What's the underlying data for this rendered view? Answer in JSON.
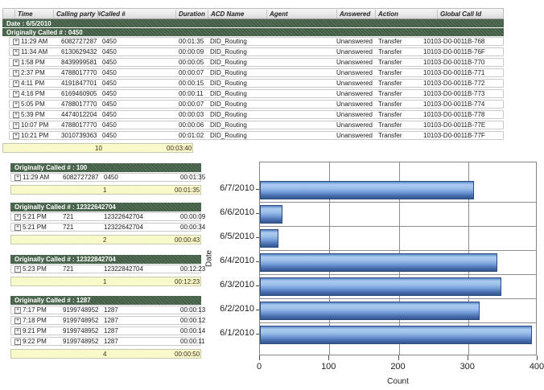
{
  "report": {
    "columns": [
      "",
      "Time",
      "Calling party #",
      "Called #",
      "Duration",
      "ACD Name",
      "Agent",
      "Answered",
      "Action",
      "Global Call Id"
    ],
    "date_label": "Date : 6/5/2010",
    "expand_icon_glyph": "+",
    "groups": [
      {
        "header": "Originally Called # : 0450",
        "full_columns": true,
        "rows": [
          [
            "11:29 AM",
            "6082727287",
            "0450",
            "00:01:35",
            "DID_Routing",
            "",
            "Unanswered",
            "Transfer",
            "10103-D0-0011B-768"
          ],
          [
            "11:34 AM",
            "6130629432",
            "0450",
            "00:00:09",
            "DID_Routing",
            "",
            "Unanswered",
            "Transfer",
            "10103-D0-0011B-76F"
          ],
          [
            "1:58 PM",
            "8439999581",
            "0450",
            "00:00:05",
            "DID_Routing",
            "",
            "Unanswered",
            "Transfer",
            "10103-D0-0011B-770"
          ],
          [
            "2:37 PM",
            "4788017770",
            "0450",
            "00:00:07",
            "DID_Routing",
            "",
            "Unanswered",
            "Transfer",
            "10103-D0-0011B-771"
          ],
          [
            "4:11 PM",
            "4191847701",
            "0450",
            "00:00:15",
            "DID_Routing",
            "",
            "Unanswered",
            "Transfer",
            "10103-D0-0011B-772"
          ],
          [
            "4:16 PM",
            "6169460905",
            "0450",
            "00:00:11",
            "DID_Routing",
            "",
            "Unanswered",
            "Transfer",
            "10103-D0-0011B-773"
          ],
          [
            "5:05 PM",
            "4788017770",
            "0450",
            "00:00:07",
            "DID_Routing",
            "",
            "Unanswered",
            "Transfer",
            "10103-D0-0011B-774"
          ],
          [
            "5:39 PM",
            "4474012204",
            "0450",
            "00:00:03",
            "DID_Routing",
            "",
            "Unanswered",
            "Transfer",
            "10103-D0-0011B-778"
          ],
          [
            "10:07 PM",
            "4788017770",
            "0450",
            "00:00:06",
            "DID_Routing",
            "",
            "Unanswered",
            "Transfer",
            "10103-D0-0011B-77E"
          ],
          [
            "10:21 PM",
            "3010739363",
            "0450",
            "00:01:02",
            "DID_Routing",
            "",
            "Unanswered",
            "Transfer",
            "10103-D0-0011B-77F"
          ]
        ],
        "summary": {
          "count": "10",
          "total_duration": "00:03:40"
        }
      },
      {
        "header": "Originally Called # : 100",
        "full_columns": false,
        "rows": [
          [
            "11:29 AM",
            "6082727287",
            "0450",
            "00:01:35"
          ]
        ],
        "summary": {
          "count": "1",
          "total_duration": "00:01:35"
        }
      },
      {
        "header": "Originally Called # : 12322642704",
        "full_columns": false,
        "rows": [
          [
            "5:21 PM",
            "721",
            "12322642704",
            "00:00:09"
          ],
          [
            "5:21 PM",
            "721",
            "12322642704",
            "00:00:34"
          ]
        ],
        "summary": {
          "count": "2",
          "total_duration": "00:00:43"
        }
      },
      {
        "header": "Originally Called # : 12322842704",
        "full_columns": false,
        "rows": [
          [
            "5:23 PM",
            "721",
            "12322842704",
            "00:12:23"
          ]
        ],
        "summary": {
          "count": "1",
          "total_duration": "00:12:23"
        }
      },
      {
        "header": "Originally Called # : 1287",
        "full_columns": false,
        "rows": [
          [
            "7:17 PM",
            "9199748952",
            "1287",
            "00:00:13"
          ],
          [
            "7:18 PM",
            "9199748952",
            "1287",
            "00:00:12"
          ],
          [
            "9:21 PM",
            "9199748952",
            "1287",
            "00:00:14"
          ],
          [
            "9:22 PM",
            "9199748952",
            "1287",
            "00:00:11"
          ]
        ],
        "summary": {
          "count": "4",
          "total_duration": "00:00:50"
        }
      }
    ]
  },
  "chart_data": {
    "type": "bar",
    "orientation": "horizontal",
    "categories": [
      "6/7/2010",
      "6/6/2010",
      "6/5/2010",
      "6/4/2010",
      "6/3/2010",
      "6/2/2010",
      "6/1/2010"
    ],
    "values": [
      308,
      32,
      27,
      342,
      348,
      317,
      392
    ],
    "title": "",
    "xlabel": "Count",
    "ylabel": "Date",
    "xlim": [
      0,
      400
    ],
    "xticks": [
      0,
      100,
      200,
      300,
      400
    ],
    "grid": true,
    "legend": false,
    "bar_color_light": "#abcaef",
    "bar_color_dark": "#34568e"
  },
  "colors": {
    "group_header_green": "#47644a",
    "summary_yellow": "#f8f8c3",
    "header_gray": "#e9e9e9",
    "gridline_gray": "#8d8d8d"
  }
}
